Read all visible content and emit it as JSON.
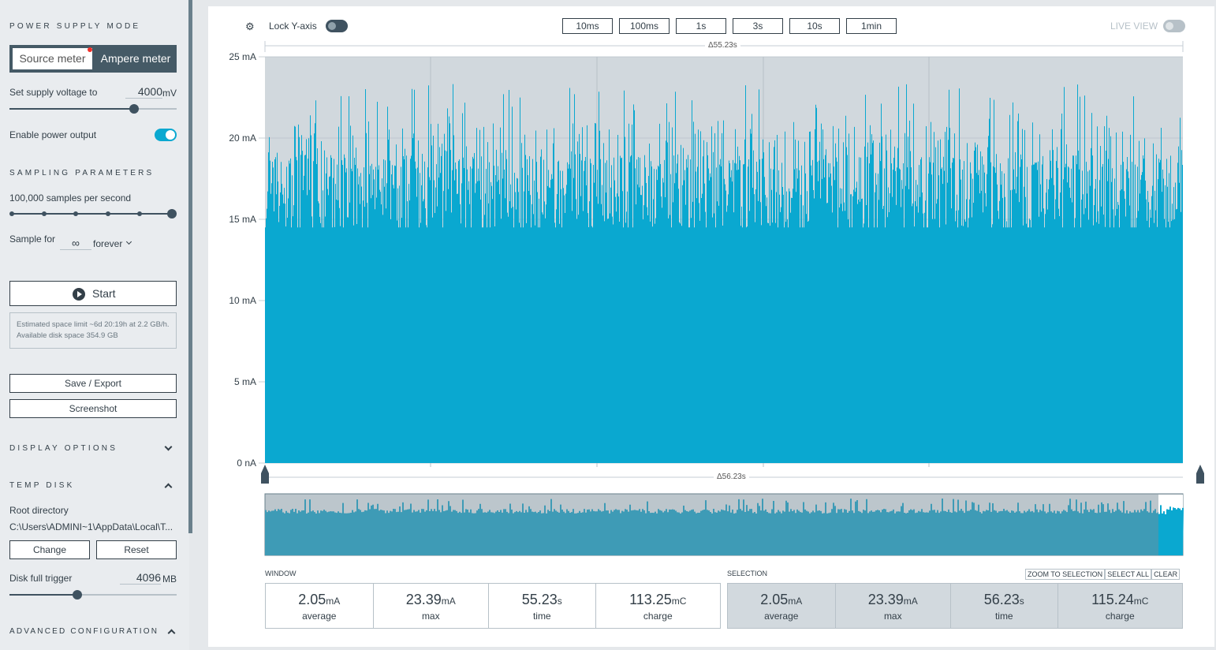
{
  "sidebar": {
    "power_supply_mode": "POWER SUPPLY MODE",
    "mode_source": "Source meter",
    "mode_ampere": "Ampere meter",
    "supply_voltage_label": "Set supply voltage to",
    "supply_voltage_value": "4000",
    "supply_voltage_unit": "mV",
    "supply_voltage_slider": 0.75,
    "enable_power_output": "Enable power output",
    "power_output_on": true,
    "sampling_parameters": "SAMPLING PARAMETERS",
    "samples_label": "100,000 samples per second",
    "samples_steps": 6,
    "samples_selected": 6,
    "sample_for_label": "Sample for",
    "sample_for_value": "∞",
    "sample_for_unit": "forever",
    "start": "Start",
    "estimate": "Estimated space limit ~6d 20:19h at 2.2 GB/h. Available disk space 354.9 GB",
    "save_export": "Save / Export",
    "screenshot": "Screenshot",
    "display_options": "DISPLAY OPTIONS",
    "temp_disk": "TEMP DISK",
    "root_directory": "Root directory",
    "root_path": "C:\\Users\\ADMINI~1\\AppData\\Local\\T...",
    "change": "Change",
    "reset": "Reset",
    "disk_full_label": "Disk full trigger",
    "disk_full_value": "4096",
    "disk_full_unit": "MB",
    "disk_full_slider": 0.4,
    "advanced": "ADVANCED CONFIGURATION"
  },
  "toolbar": {
    "lock_y": "Lock Y-axis",
    "lock_y_on": false,
    "windows": [
      "10ms",
      "100ms",
      "1s",
      "3s",
      "10s",
      "1min"
    ],
    "live_view": "LIVE VIEW",
    "live_view_on": false
  },
  "chart_data": {
    "type": "area",
    "ylabel": "",
    "yticks": [
      "25 mA",
      "20 mA",
      "15 mA",
      "10 mA",
      "5 mA",
      "0 nA"
    ],
    "ylim": [
      0,
      25
    ],
    "grid": true,
    "window_delta": "Δ55.23s",
    "minimap_delta": "Δ56.23s",
    "color": "#0aa8d0"
  },
  "window": {
    "title": "WINDOW",
    "stats": [
      {
        "value": "2.05",
        "unit": "mA",
        "label": "average"
      },
      {
        "value": "23.39",
        "unit": "mA",
        "label": "max"
      },
      {
        "value": "55.23",
        "unit": "s",
        "label": "time"
      },
      {
        "value": "113.25",
        "unit": "mC",
        "label": "charge"
      }
    ]
  },
  "selection": {
    "title": "SELECTION",
    "zoom": "ZOOM TO SELECTION",
    "select_all": "SELECT ALL",
    "clear": "CLEAR",
    "stats": [
      {
        "value": "2.05",
        "unit": "mA",
        "label": "average"
      },
      {
        "value": "23.39",
        "unit": "mA",
        "label": "max"
      },
      {
        "value": "56.23",
        "unit": "s",
        "label": "time"
      },
      {
        "value": "115.24",
        "unit": "mC",
        "label": "charge"
      }
    ]
  }
}
